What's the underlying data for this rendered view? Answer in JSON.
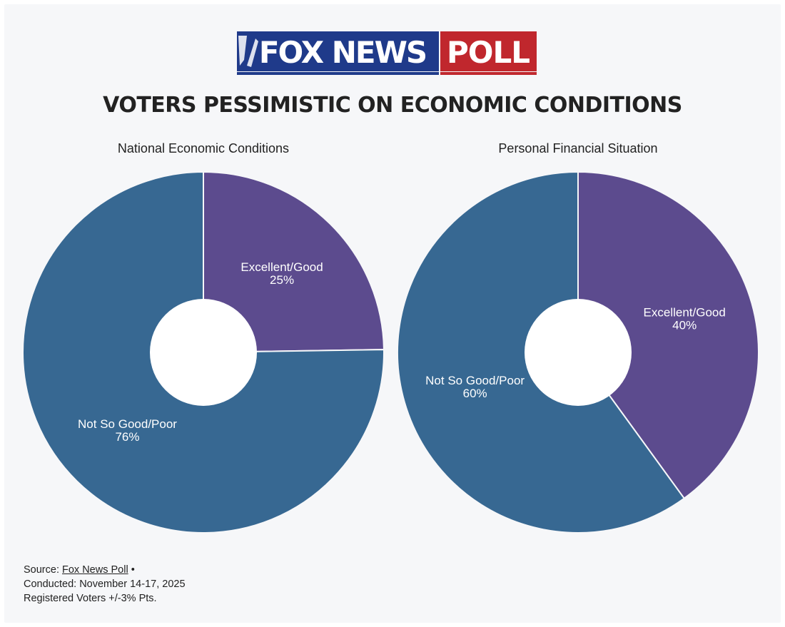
{
  "logo": {
    "text_main": "FOX NEWS",
    "text_poll": "POLL",
    "colors": {
      "navy": "#1f3a8a",
      "red": "#c0272d"
    }
  },
  "headline": "VOTERS PESSIMISTIC ON ECONOMIC CONDITIONS",
  "chart_data": [
    {
      "type": "pie",
      "title": "National Economic Conditions",
      "slices": [
        {
          "label": "Excellent/Good",
          "value": 25,
          "display": "25%",
          "color": "#5c4b8e"
        },
        {
          "label": "Not So Good/Poor",
          "value": 76,
          "display": "76%",
          "color": "#376892"
        }
      ]
    },
    {
      "type": "pie",
      "title": "Personal Financial Situation",
      "slices": [
        {
          "label": "Excellent/Good",
          "value": 40,
          "display": "40%",
          "color": "#5c4b8e"
        },
        {
          "label": "Not So Good/Poor",
          "value": 60,
          "display": "60%",
          "color": "#376892"
        }
      ]
    }
  ],
  "source": {
    "prefix": "Source: ",
    "link_text": "Fox News Poll",
    "suffix": " •",
    "conducted": "Conducted: November 14-17, 2025",
    "sample": "Registered Voters +/-3% Pts."
  }
}
